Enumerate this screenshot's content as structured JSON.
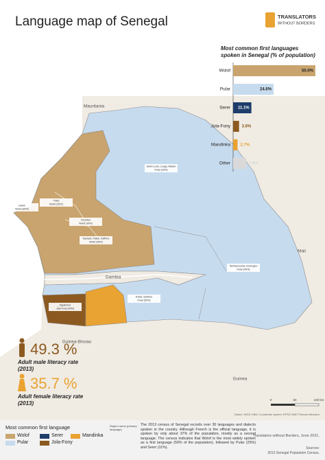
{
  "header": {
    "title": "Language map of Senegal",
    "logo_line1": "TRANSLATORS",
    "logo_line2": "WITHOUT BORDERS"
  },
  "chart_data": {
    "type": "bar",
    "title": "Most common first languages spoken in Senegal (% of population)",
    "categories": [
      "Wolof",
      "Pular",
      "Serer",
      "Jola-Fony",
      "Mandinka",
      "Other"
    ],
    "values": [
      50.0,
      24.6,
      11.1,
      3.6,
      2.7,
      7.9
    ],
    "value_labels": [
      "50.0%",
      "24.6%",
      "11.1%",
      "3.6%",
      "2.7%",
      "7.9%"
    ],
    "colors": [
      "#c9a46e",
      "#c7dbee",
      "#1e3d6b",
      "#8c5a20",
      "#e9a332",
      "#d9d9d9"
    ]
  },
  "map": {
    "countries": [
      "Mauritania",
      "Mali",
      "Gambia",
      "Guinea-Bissau",
      "Guinea"
    ],
    "regions": [
      {
        "name": "Saint-Louis, Louga, Matam",
        "language": "Pular (33%)"
      },
      {
        "name": "Thiès",
        "language": "Wolof (52%)"
      },
      {
        "name": "Dakar",
        "language": "Wolof (82%)"
      },
      {
        "name": "Diourbel",
        "language": "Wolof (90%)"
      },
      {
        "name": "Kaolack, Fatick, Kaffrine",
        "language": "Wolof (65%)"
      },
      {
        "name": "Tambacounda, Kedougou",
        "language": "Pular (45%)"
      },
      {
        "name": "Kolda, Sedhiou",
        "language": "Pular (55%)"
      },
      {
        "name": "Ziguinchor",
        "language": "Jola-Fony (44%)"
      }
    ],
    "scale": [
      "0",
      "50",
      "100 km"
    ],
    "datum": "Datum: WGS 1984; Coordinate system: EPSG 3857 Pseudo-Mercator"
  },
  "literacy": [
    {
      "value": "49.3 %",
      "label": "Adult male literacy rate",
      "year": "(2013)"
    },
    {
      "value": "35.7 %",
      "label": "Adult female literacy rate",
      "year": "(2013)"
    }
  ],
  "legend": {
    "title": "Most common first language",
    "region_note": "Region name (primary language)",
    "items": [
      {
        "name": "Wolof",
        "color": "#c9a46e"
      },
      {
        "name": "Pular",
        "color": "#c7dbee"
      },
      {
        "name": "Serer",
        "color": "#1e3d6b"
      },
      {
        "name": "Jola-Fony",
        "color": "#8c5a20"
      },
      {
        "name": "Mandinka",
        "color": "#e9a332"
      }
    ]
  },
  "body": "The 2013 census of Senegal records over 30 languages and dialects spoken in the country. Although French is the official language, it is spoken by only about 37% of the population, mostly as a second language. The census indicates that Wolof is the most widely spoken as a first language (50% of the population), followed by Pular (25%) and Serer (11%).",
  "credit": "Translators without Borders, June 2021.",
  "sources": "Sources:",
  "sources_text": "2013 Senegal Population Census."
}
